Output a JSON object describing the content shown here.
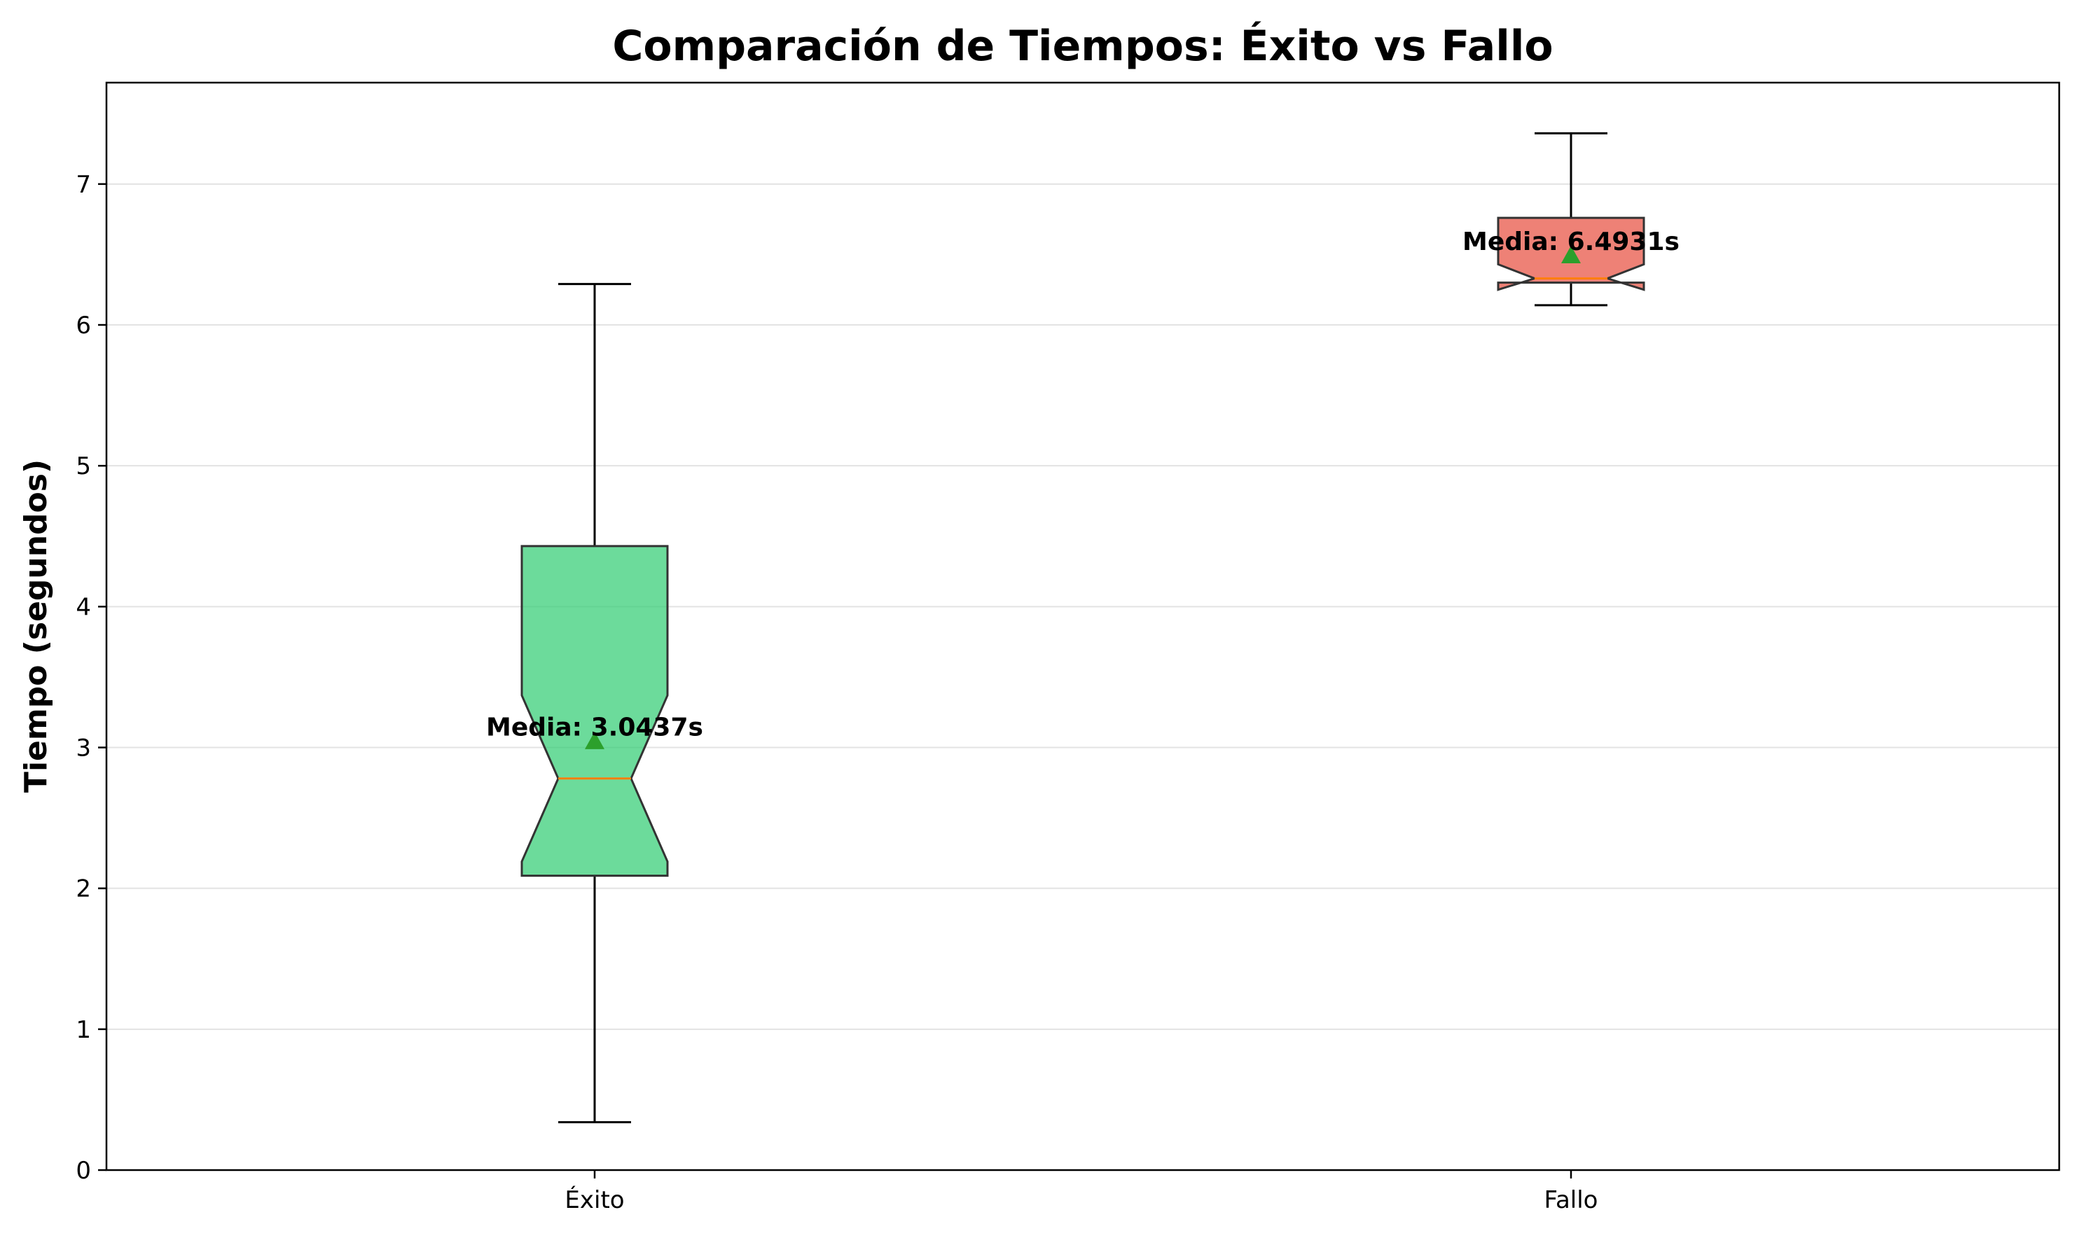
{
  "chart_data": {
    "type": "boxplot",
    "title": "Comparación de Tiempos: Éxito vs Fallo",
    "xlabel": "",
    "ylabel": "Tiempo (segundos)",
    "ylim": [
      0,
      7.72
    ],
    "yticks": [
      0,
      1,
      2,
      3,
      4,
      5,
      6,
      7
    ],
    "grid": "y",
    "notched": true,
    "categories": [
      "Éxito",
      "Fallo"
    ],
    "boxes": [
      {
        "category": "Éxito",
        "color": "#2ecc71",
        "whisker_low": 0.34,
        "q1": 2.09,
        "median": 2.78,
        "q3": 4.43,
        "whisker_high": 6.29,
        "notch_low": 2.19,
        "notch_high": 3.37,
        "mean": 3.0437,
        "mean_label": "Media: 3.0437s"
      },
      {
        "category": "Fallo",
        "color": "#e74c3c",
        "whisker_low": 6.14,
        "q1": 6.3,
        "median": 6.33,
        "q3": 6.76,
        "whisker_high": 7.36,
        "notch_low": 6.25,
        "notch_high": 6.43,
        "mean": 6.4931,
        "mean_label": "Media: 6.4931s"
      }
    ],
    "mean_marker_color": "#2ca02c",
    "median_color": "#ff7f0e"
  }
}
